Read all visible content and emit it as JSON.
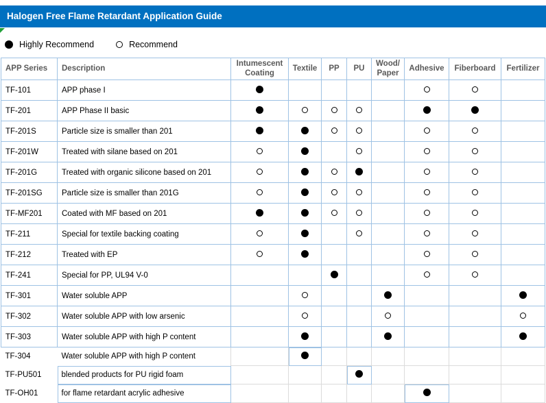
{
  "title": "Halogen Free Flame Retardant Application Guide",
  "legend": {
    "highly": {
      "symbol": "filled-circle",
      "label": "Highly Recommend"
    },
    "recommend": {
      "symbol": "open-circle",
      "label": "Recommend"
    }
  },
  "colors": {
    "title_bar_blue": "#0070C0",
    "table_border_blue": "#9EC2E4",
    "gridline_gray": "#DBDBDB",
    "header_text_gray": "#595959",
    "corner_marker_green": "#21A038"
  },
  "table": {
    "columns": [
      {
        "key": "series",
        "label": "APP Series"
      },
      {
        "key": "description",
        "label": "Description"
      },
      {
        "key": "intumescent_coating",
        "label": "Intumescent\nCoating"
      },
      {
        "key": "textile",
        "label": "Textile"
      },
      {
        "key": "pp",
        "label": "PP"
      },
      {
        "key": "pu",
        "label": "PU"
      },
      {
        "key": "wood_paper",
        "label": "Wood/\nPaper"
      },
      {
        "key": "adhesive",
        "label": "Adhesive"
      },
      {
        "key": "fiberboard",
        "label": "Fiberboard"
      },
      {
        "key": "fertilizer",
        "label": "Fertilizer"
      }
    ],
    "mark_meaning": {
      "H": "Highly Recommend",
      "R": "Recommend"
    },
    "rows": [
      {
        "series": "TF-101",
        "description": "APP phase I",
        "marks": [
          "H",
          "",
          "",
          "",
          "",
          "R",
          "R",
          ""
        ]
      },
      {
        "series": "TF-201",
        "description": "APP Phase II basic",
        "marks": [
          "H",
          "R",
          "R",
          "R",
          "",
          "H",
          "H",
          ""
        ]
      },
      {
        "series": "TF-201S",
        "description": "Particle size is smaller than 201",
        "marks": [
          "H",
          "H",
          "R",
          "R",
          "",
          "R",
          "R",
          ""
        ]
      },
      {
        "series": "TF-201W",
        "description": "Treated with silane based on 201",
        "marks": [
          "R",
          "H",
          "",
          "R",
          "",
          "R",
          "R",
          ""
        ]
      },
      {
        "series": "TF-201G",
        "description": "Treated with organic silicone based on 201",
        "marks": [
          "R",
          "H",
          "R",
          "H",
          "",
          "R",
          "R",
          ""
        ]
      },
      {
        "series": "TF-201SG",
        "description": "Particle size is smaller than 201G",
        "marks": [
          "R",
          "H",
          "R",
          "R",
          "",
          "R",
          "R",
          ""
        ]
      },
      {
        "series": "TF-MF201",
        "description": "Coated with MF based on 201",
        "marks": [
          "H",
          "H",
          "R",
          "R",
          "",
          "R",
          "R",
          ""
        ]
      },
      {
        "series": "TF-211",
        "description": "Special for textile backing coating",
        "marks": [
          "R",
          "H",
          "",
          "R",
          "",
          "R",
          "R",
          ""
        ]
      },
      {
        "series": "TF-212",
        "description": "Treated with EP",
        "marks": [
          "R",
          "H",
          "",
          "",
          "",
          "R",
          "R",
          ""
        ]
      },
      {
        "series": "TF-241",
        "description": "Special for PP, UL94 V-0",
        "marks": [
          "",
          "",
          "H",
          "",
          "",
          "R",
          "R",
          ""
        ]
      },
      {
        "series": "TF-301",
        "description": "Water soluble APP",
        "marks": [
          "",
          "R",
          "",
          "",
          "H",
          "",
          "",
          "H"
        ]
      },
      {
        "series": "TF-302",
        "description": "Water soluble APP with low arsenic",
        "marks": [
          "",
          "R",
          "",
          "",
          "R",
          "",
          "",
          "R"
        ]
      },
      {
        "series": "TF-303",
        "description": "Water soluble APP with high P content",
        "marks": [
          "",
          "H",
          "",
          "",
          "H",
          "",
          "",
          "H"
        ]
      },
      {
        "series": "TF-304",
        "description": "Water soluble APP with high P content",
        "marks": [
          "",
          "H",
          "",
          "",
          "",
          "",
          "",
          ""
        ],
        "section": "plain"
      },
      {
        "series": "TF-PU501",
        "description": "blended products for PU rigid foam",
        "marks": [
          "",
          "",
          "",
          "H",
          "",
          "",
          "",
          ""
        ],
        "section": "plain",
        "desc_boxed": true
      },
      {
        "series": "TF-OH01",
        "description": "for flame retardant acrylic adhesive",
        "marks": [
          "",
          "",
          "",
          "",
          "",
          "H",
          "",
          ""
        ],
        "section": "plain",
        "desc_boxed": true
      }
    ]
  }
}
